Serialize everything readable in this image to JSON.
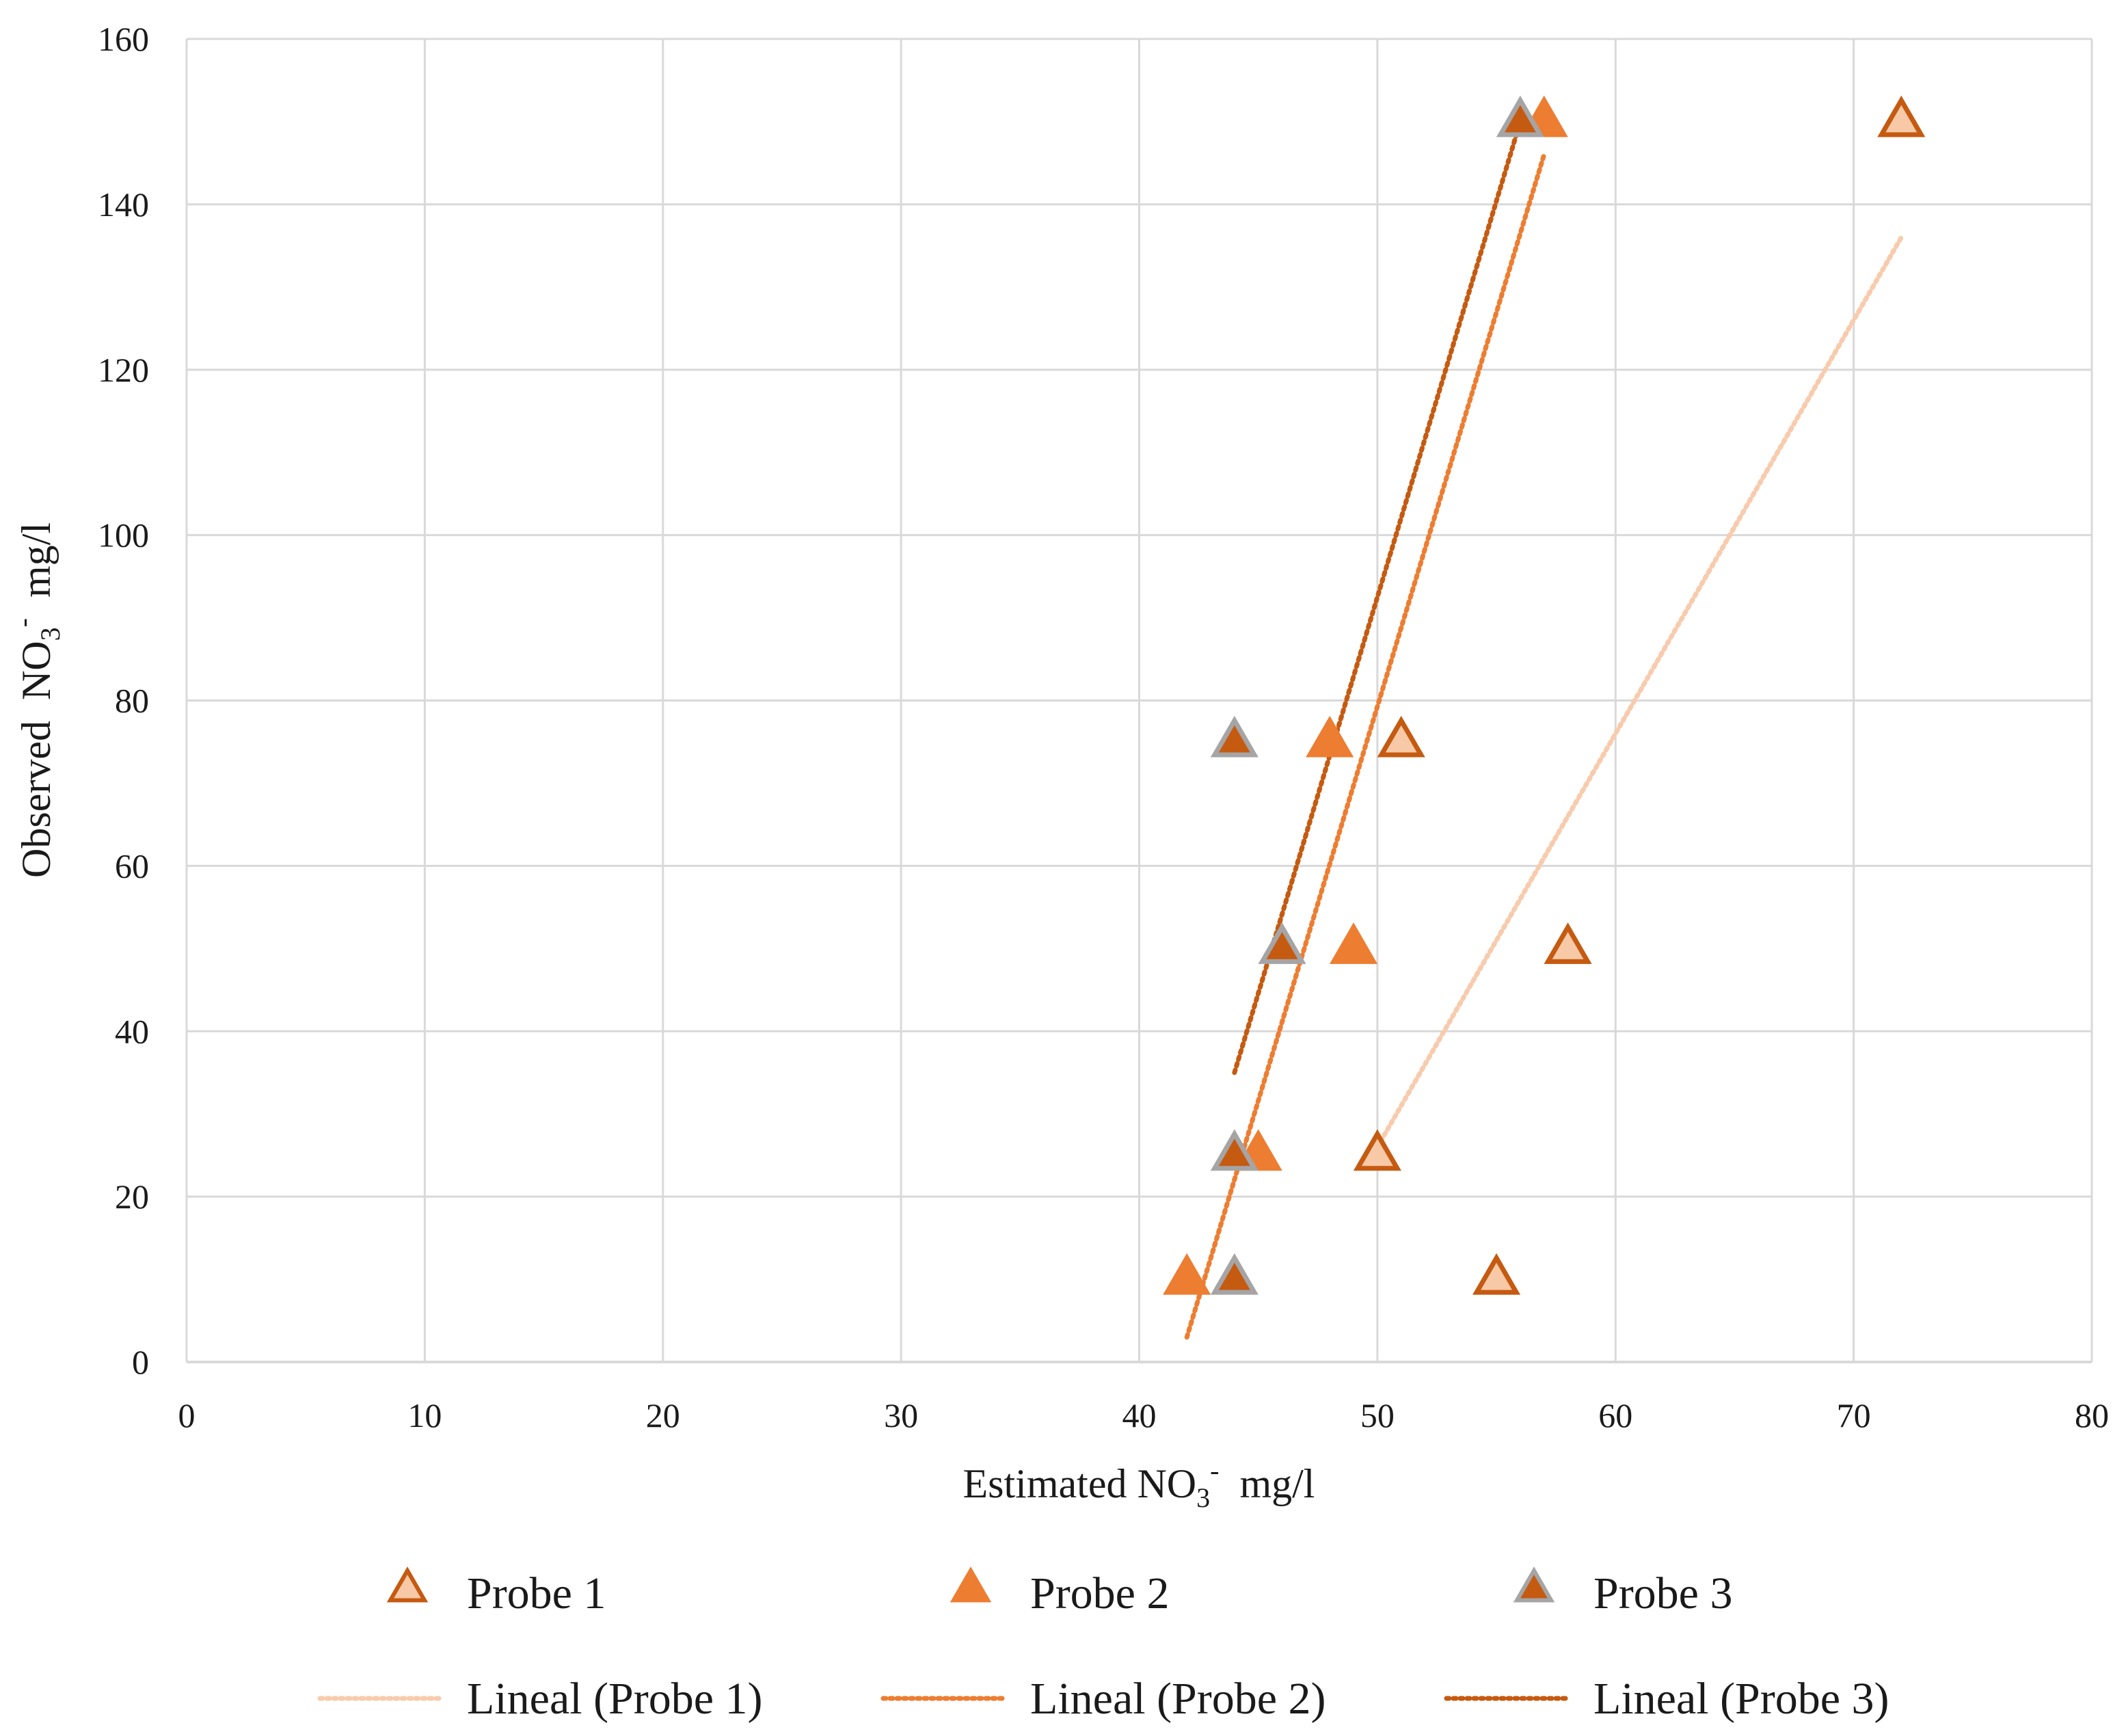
{
  "chart_data": {
    "type": "scatter",
    "xlabel": {
      "prefix": "Estimated NO",
      "sub": "3",
      "sup": "-",
      "suffix": "  mg/l"
    },
    "ylabel": {
      "prefix": "Observed  NO",
      "sub": "3",
      "sup": "-",
      "suffix": "  mg/l"
    },
    "xlim": [
      0,
      80
    ],
    "ylim": [
      0,
      160
    ],
    "xticks": [
      "0",
      "10",
      "20",
      "30",
      "40",
      "50",
      "60",
      "70",
      "80"
    ],
    "yticks": [
      "0",
      "20",
      "40",
      "60",
      "80",
      "100",
      "120",
      "140",
      "160"
    ],
    "grid": true,
    "legend_position": "bottom",
    "series": [
      {
        "name": "Probe 1",
        "fill": "#f8c9a6",
        "stroke": "#c55a11",
        "points": [
          [
            50,
            25
          ],
          [
            55,
            10
          ],
          [
            51,
            75
          ],
          [
            58,
            50
          ],
          [
            72,
            150
          ]
        ]
      },
      {
        "name": "Probe 2",
        "fill": "#ed7d31",
        "stroke": "#ed7d31",
        "points": [
          [
            42,
            10
          ],
          [
            45,
            25
          ],
          [
            48,
            75
          ],
          [
            49,
            50
          ],
          [
            57,
            150
          ]
        ]
      },
      {
        "name": "Probe 3",
        "fill": "#c55a11",
        "stroke": "#a5a5a5",
        "points": [
          [
            44,
            10
          ],
          [
            44,
            25
          ],
          [
            44,
            75
          ],
          [
            46,
            50
          ],
          [
            56,
            150
          ]
        ]
      }
    ],
    "trendlines": [
      {
        "name": "Lineal (Probe 1)",
        "color": "#f8cbad",
        "x": [
          50,
          72
        ],
        "y": [
          26,
          136
        ]
      },
      {
        "name": "Lineal (Probe 2)",
        "color": "#ed7d31",
        "x": [
          42,
          57
        ],
        "y": [
          3,
          146
        ]
      },
      {
        "name": "Lineal (Probe 3)",
        "color": "#c55a11",
        "x": [
          44,
          56
        ],
        "y": [
          35,
          150
        ]
      }
    ]
  }
}
